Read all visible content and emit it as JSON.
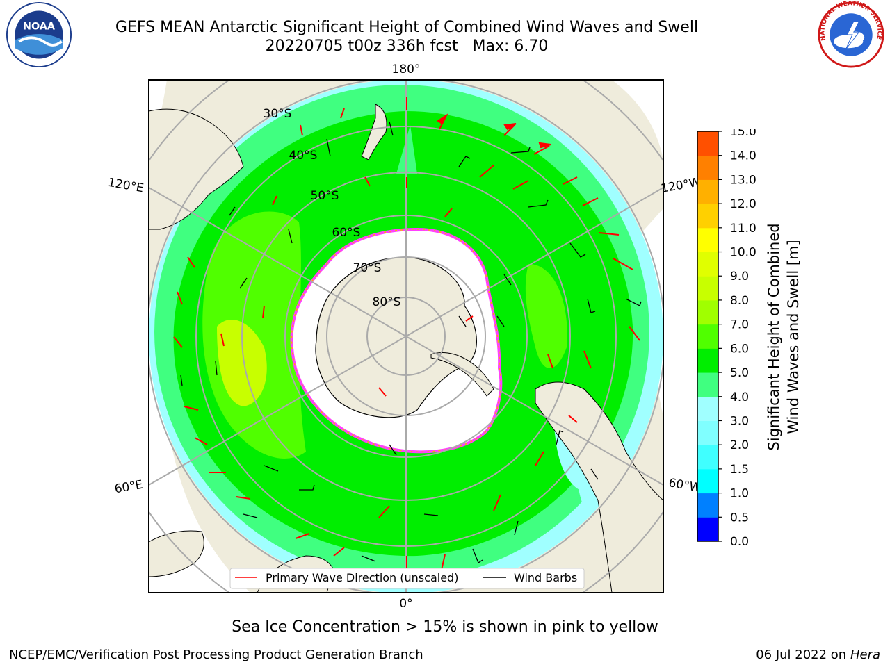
{
  "title": "GEFS MEAN Antarctic Significant Height of Combined Wind Waves and Swell",
  "subtitle": "20220705 t00z 336h fcst   Max: 6.70",
  "caption": "Sea Ice Concentration > 15% is shown in pink to yellow",
  "footer": {
    "left": "NCEP/EMC/Verification Post Processing Product Generation Branch",
    "right_date": "06 Jul 2022 on",
    "right_host": "Hera"
  },
  "map": {
    "longitude_labels": {
      "top": "180°",
      "bottom": "0°",
      "left_upper": "120°E",
      "left_lower": "60°E",
      "right_upper": "120°W",
      "right_lower": "60°W"
    },
    "latitude_labels": [
      "30°S",
      "40°S",
      "50°S",
      "60°S",
      "70°S",
      "80°S"
    ],
    "legend": {
      "wave_direction": "Primary Wave Direction (unscaled)",
      "wind_barbs": "Wind Barbs",
      "wave_direction_color": "#ff0000",
      "wind_barbs_color": "#000000"
    },
    "land_color": "#efecdc",
    "sea_ice_color": "#ffffff"
  },
  "colorbar": {
    "label_line1": "Significant Height of Combined",
    "label_line2": "Wind Waves and Swell [m]",
    "ticks": [
      "15.0",
      "14.0",
      "13.0",
      "12.0",
      "11.0",
      "10.0",
      "9.0",
      "8.0",
      "7.0",
      "6.0",
      "5.0",
      "4.0",
      "3.0",
      "2.0",
      "1.5",
      "1.0",
      "0.5",
      "0.0"
    ],
    "colors_bottom_to_top": [
      "#0000ff",
      "#0080ff",
      "#00ffff",
      "#40ffff",
      "#80ffff",
      "#a0ffff",
      "#40ff80",
      "#00ee00",
      "#50ff00",
      "#a0ff00",
      "#c8ff00",
      "#e0ff00",
      "#ffff00",
      "#ffd000",
      "#ffb000",
      "#ff8000",
      "#ff5000",
      "#ff2000",
      "#ff0000"
    ]
  },
  "logos": {
    "left_text": "NOAA",
    "right_ring_text": "NATIONAL WEATHER SERVICE"
  }
}
